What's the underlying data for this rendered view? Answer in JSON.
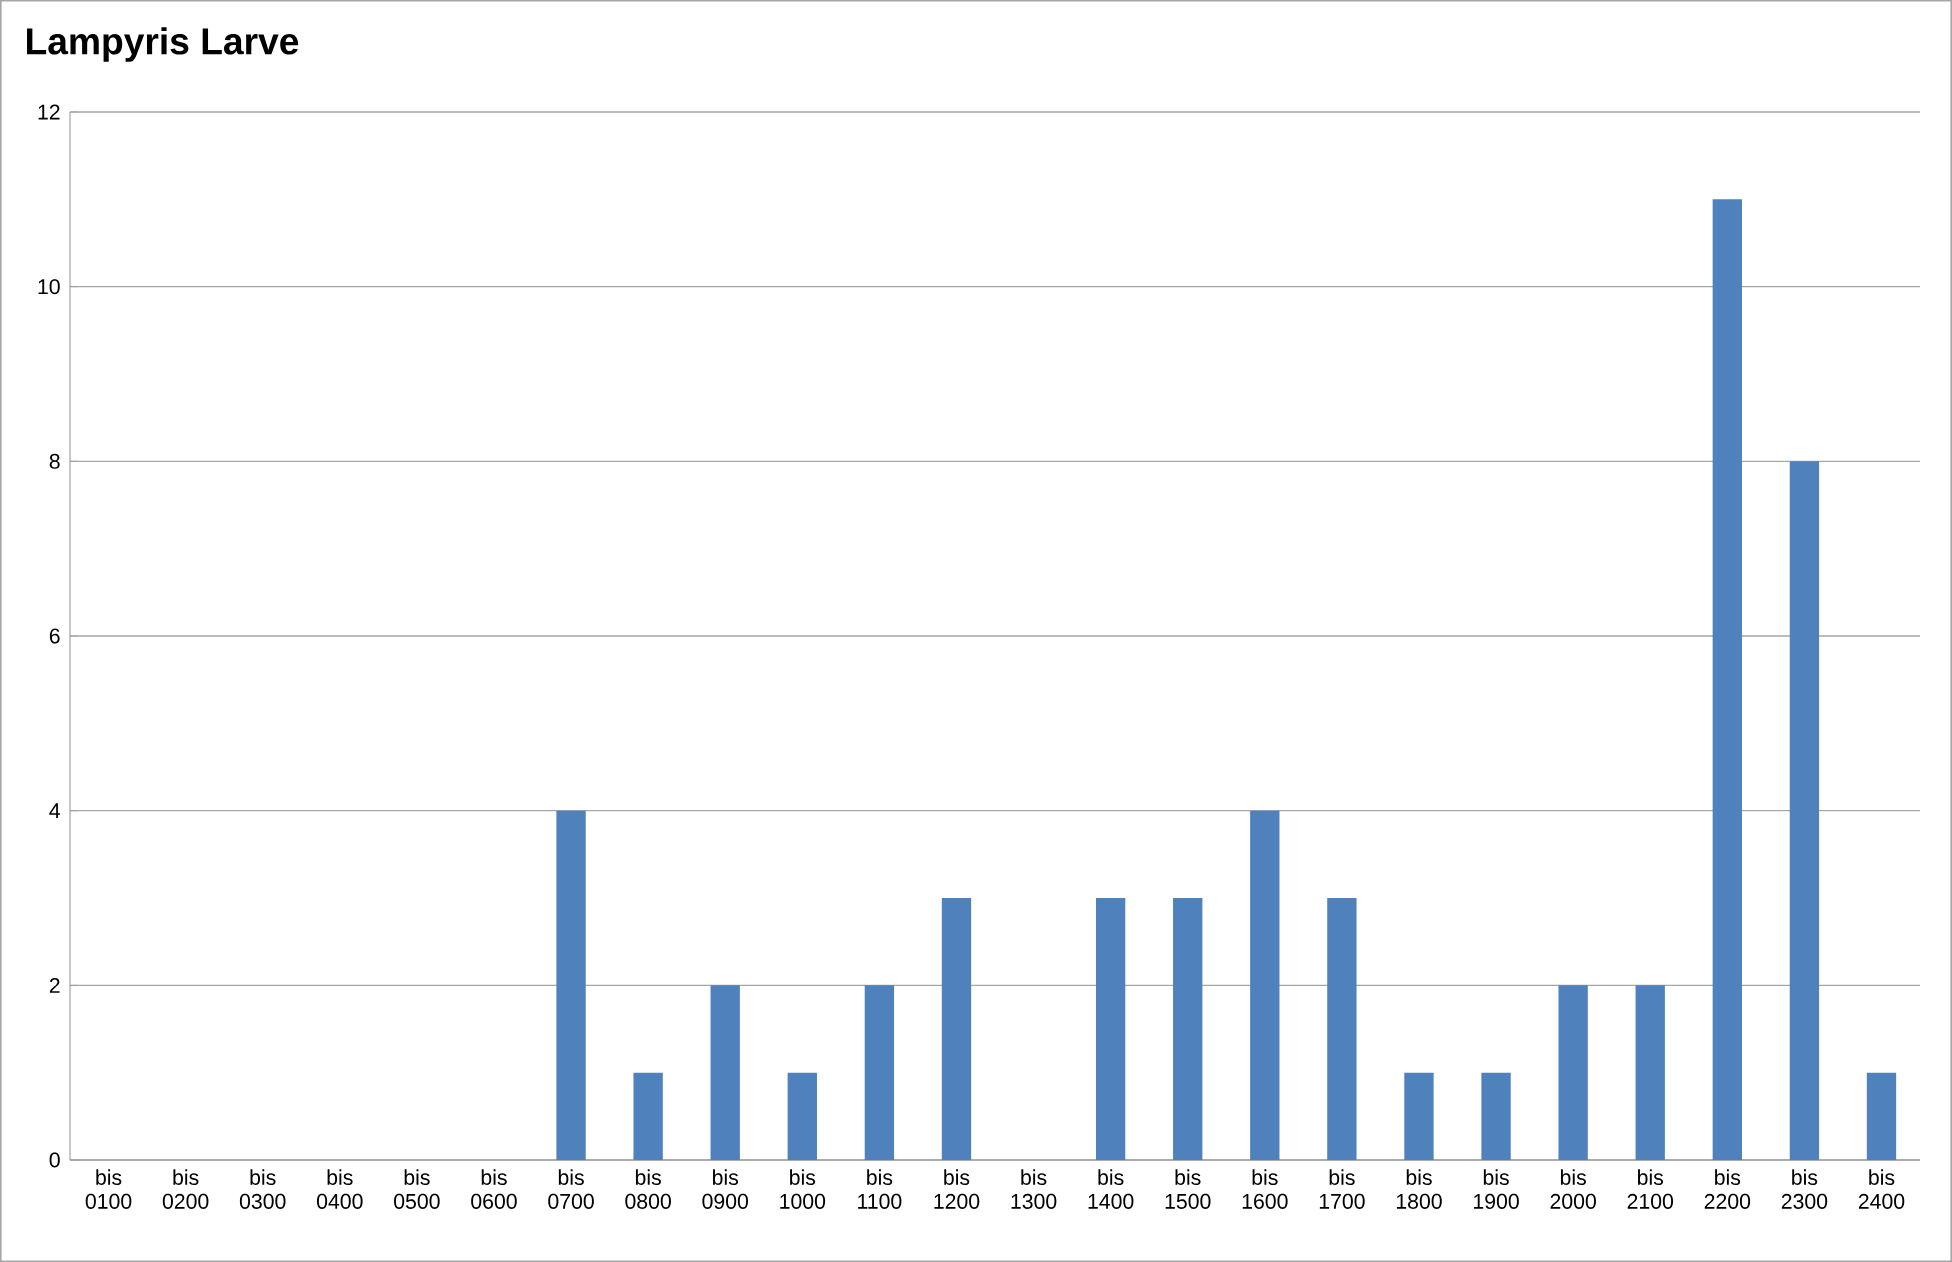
{
  "chart_data": {
    "type": "bar",
    "title": "Lampyris Larve",
    "categories": [
      "bis 0100",
      "bis 0200",
      "bis 0300",
      "bis 0400",
      "bis 0500",
      "bis 0600",
      "bis 0700",
      "bis 0800",
      "bis 0900",
      "bis 1000",
      "bis 1100",
      "bis 1200",
      "bis 1300",
      "bis 1400",
      "bis 1500",
      "bis 1600",
      "bis 1700",
      "bis 1800",
      "bis 1900",
      "bis 2000",
      "bis 2100",
      "bis 2200",
      "bis 2300",
      "bis 2400"
    ],
    "values": [
      0,
      0,
      0,
      0,
      0,
      0,
      4,
      1,
      2,
      1,
      2,
      3,
      0,
      3,
      3,
      4,
      3,
      1,
      1,
      2,
      2,
      11,
      8,
      1
    ],
    "color": "#4f81bd",
    "ylim": [
      0,
      12
    ],
    "yticks": [
      0,
      2,
      4,
      6,
      8,
      10,
      12
    ],
    "grid": "y"
  }
}
